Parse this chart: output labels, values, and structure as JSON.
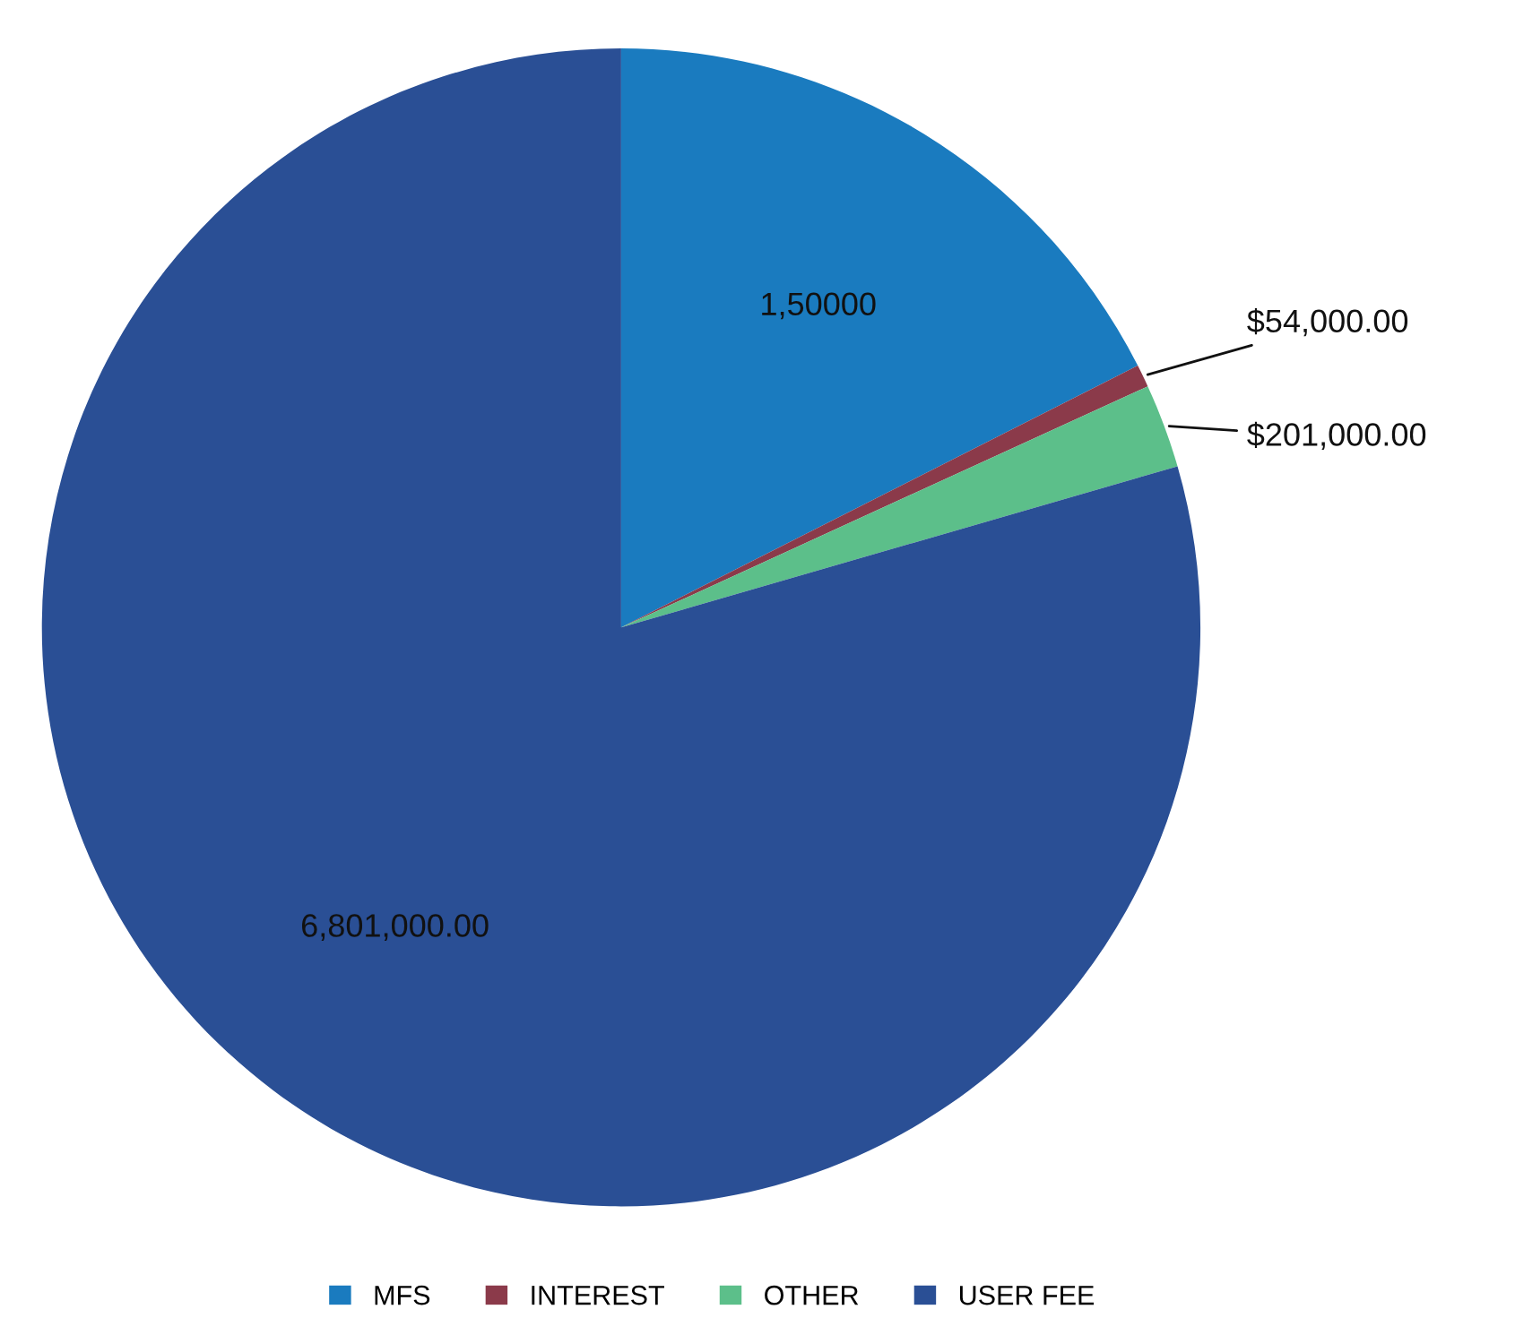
{
  "chart_data": {
    "type": "pie",
    "categories": [
      "MFS",
      "INTEREST",
      "OTHER",
      "USER FEE"
    ],
    "values": [
      1500000,
      54000,
      201000,
      6801000
    ],
    "colors": [
      "#1a7bbf",
      "#8b3a4a",
      "#5cbf8a",
      "#2a4f95"
    ],
    "value_labels": [
      "1,50000",
      "$54,000.00",
      "$201,000.00",
      "6,801,000.00"
    ],
    "legend": "bottom"
  }
}
